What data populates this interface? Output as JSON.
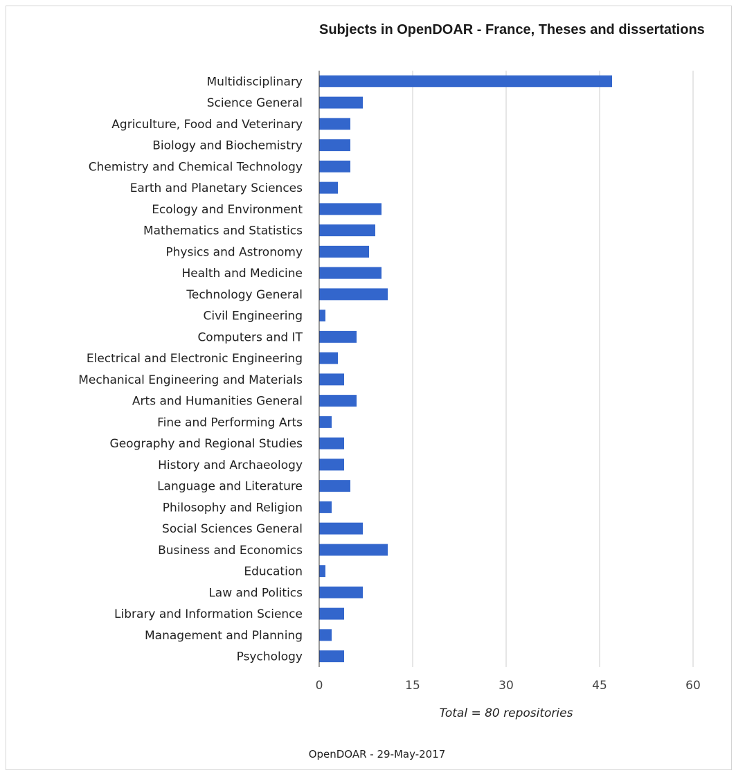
{
  "chart_data": {
    "type": "bar",
    "orientation": "horizontal",
    "title": "Subjects in OpenDOAR - France, Theses and dissertations",
    "xlabel": "Total = 80 repositories",
    "ylabel": "",
    "xlim": [
      0,
      60
    ],
    "ticks": [
      0,
      15,
      30,
      45,
      60
    ],
    "grid": true,
    "bar_color": "#3366cc",
    "categories": [
      "Multidisciplinary",
      "Science General",
      "Agriculture, Food and Veterinary",
      "Biology and Biochemistry",
      "Chemistry and Chemical Technology",
      "Earth and Planetary Sciences",
      "Ecology and Environment",
      "Mathematics and Statistics",
      "Physics and Astronomy",
      "Health and Medicine",
      "Technology General",
      "Civil Engineering",
      "Computers and IT",
      "Electrical and Electronic Engineering",
      "Mechanical Engineering and Materials",
      "Arts and Humanities General",
      "Fine and Performing Arts",
      "Geography and Regional Studies",
      "History and Archaeology",
      "Language and Literature",
      "Philosophy and Religion",
      "Social Sciences General",
      "Business and Economics",
      "Education",
      "Law and Politics",
      "Library and Information Science",
      "Management and Planning",
      "Psychology"
    ],
    "values": [
      47,
      7,
      5,
      5,
      5,
      3,
      10,
      9,
      8,
      10,
      11,
      1,
      6,
      3,
      4,
      6,
      2,
      4,
      4,
      5,
      2,
      7,
      11,
      1,
      7,
      4,
      2,
      4
    ]
  },
  "footer": "OpenDOAR - 29-May-2017"
}
